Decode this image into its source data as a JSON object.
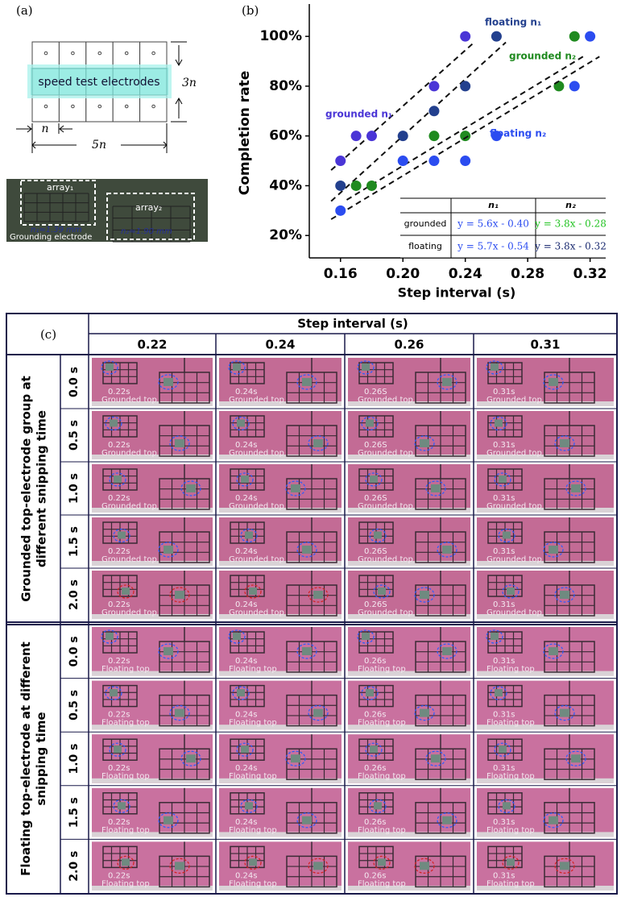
{
  "panel_a": {
    "label": "(a)",
    "band_text": "speed test electrodes",
    "height_label": "3n",
    "pitch_label": "n",
    "width_label": "5n",
    "photo": {
      "array1": "array₁",
      "array2": "array₂",
      "n1_size": "n₁≈1.39 mm",
      "n2_size": "n₂≈1.90 mm",
      "caption": "Grounding electrode"
    }
  },
  "chart_data": {
    "type": "scatter",
    "panel_label": "(b)",
    "x_label": "Step interval (s)",
    "y_label": "Completion rate",
    "xlim": [
      0.14,
      0.33
    ],
    "xticks": [
      0.16,
      {
        "value": 0.2,
        "label": "0.20"
      },
      0.24,
      0.28,
      0.32
    ],
    "ylim": [
      11,
      113
    ],
    "yticks": [
      {
        "value": 20,
        "label": "20%"
      },
      {
        "value": 40,
        "label": "40%"
      },
      {
        "value": 60,
        "label": "60%"
      },
      {
        "value": 80,
        "label": "80%"
      },
      {
        "value": 100,
        "label": "100%"
      }
    ],
    "grid": false,
    "series": [
      {
        "name": "grounded n₁",
        "color": "#4a35d6",
        "x": [
          0.16,
          0.17,
          0.18,
          0.22,
          0.24
        ],
        "values": [
          50,
          60,
          60,
          80,
          100
        ],
        "fit": {
          "slope": 5.6,
          "intercept": -0.4
        }
      },
      {
        "name": "floating n₁",
        "color": "#23408e",
        "x": [
          0.16,
          0.2,
          0.22,
          0.24,
          0.26
        ],
        "values": [
          40,
          60,
          70,
          80,
          100
        ],
        "fit": {
          "slope": 5.7,
          "intercept": -0.54
        }
      },
      {
        "name": "grounded n₂",
        "color": "#1f8a1f",
        "x": [
          0.17,
          0.18,
          0.22,
          0.24,
          0.3,
          0.31
        ],
        "values": [
          40,
          40,
          60,
          60,
          80,
          100
        ],
        "fit": {
          "slope": 3.8,
          "intercept": -0.28
        }
      },
      {
        "name": "floating n₂",
        "color": "#2b4cf0",
        "x": [
          0.16,
          0.2,
          0.22,
          0.24,
          0.26,
          0.31,
          0.32
        ],
        "values": [
          30,
          50,
          50,
          50,
          60,
          80,
          100
        ],
        "fit": {
          "slope": 3.8,
          "intercept": -0.32
        }
      }
    ],
    "table": {
      "columns": [
        "n₁",
        "n₂"
      ],
      "rows": [
        {
          "label": "grounded",
          "cells": [
            {
              "text": "y = 5.6x - 0.40",
              "color": "#2b4cf0"
            },
            {
              "text": "y = 3.8x - 0.28",
              "color": "#22c322"
            }
          ]
        },
        {
          "label": "floating",
          "cells": [
            {
              "text": "y = 5.7x - 0.54",
              "color": "#2b4cf0"
            },
            {
              "text": "y = 3.8x - 0.32",
              "color": "#1a2a70"
            }
          ]
        }
      ]
    }
  },
  "panel_c": {
    "label": "(c)",
    "column_header": "Step interval (s)",
    "columns": [
      "0.22",
      "0.24",
      "0.26",
      "0.31"
    ],
    "times": [
      "0.0 s",
      "0.5 s",
      "1.0 s",
      "1.5 s",
      "2.0 s"
    ],
    "groups": [
      {
        "title": "Grounded top-electrode group at different snipping time",
        "photo_labels": [
          "0.22s",
          "0.24s",
          "0.26S",
          "0.31s"
        ],
        "photo_caption": "Grounded top"
      },
      {
        "title": "Floating top-electrode at different snipping time",
        "photo_labels": [
          "0.22s",
          "0.24s",
          "0.26s",
          "0.31s"
        ],
        "photo_caption": "Floating top"
      }
    ]
  }
}
